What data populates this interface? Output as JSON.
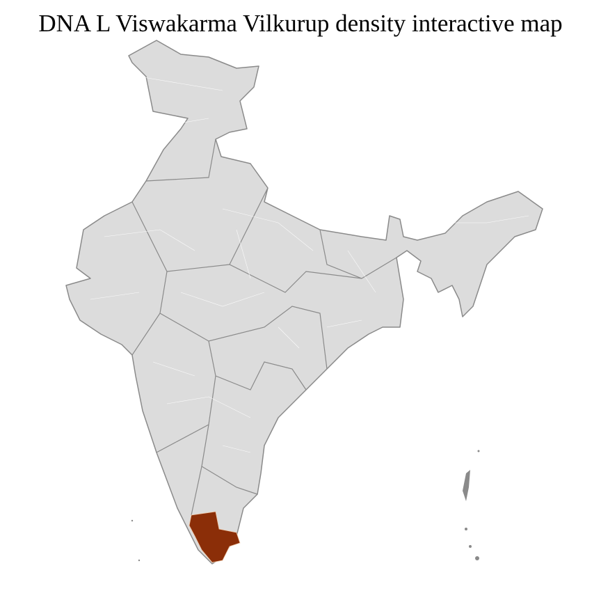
{
  "title": "DNA L Viswakarma Vilkurup density interactive map",
  "colors": {
    "land": "#dcdcdc",
    "border": "#8a8a8a",
    "district_border": "#ffffff",
    "highlight": "#8b2e08"
  },
  "highlighted_region": "Kerala / southern Tamil Nadu districts"
}
